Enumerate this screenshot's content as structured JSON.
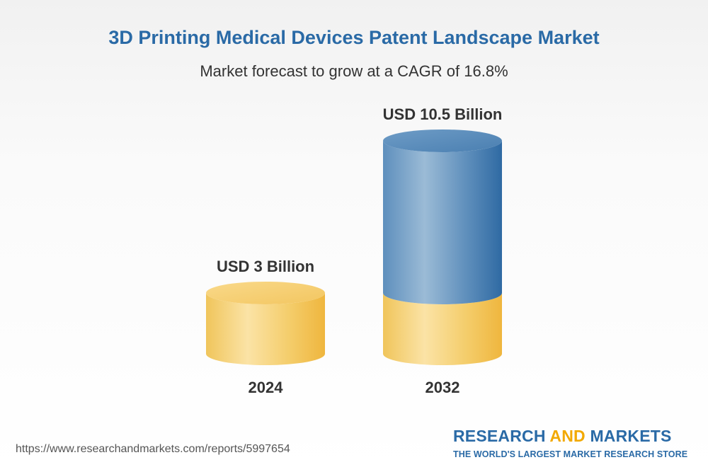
{
  "title": "3D Printing Medical Devices Patent Landscape Market",
  "subtitle": "Market forecast to grow at a CAGR of 16.8%",
  "footer": {
    "url": "https://www.researchandmarkets.com/reports/5997654",
    "brand_part1": "RESEARCH ",
    "brand_part2": "AND",
    "brand_part3": " MARKETS",
    "tagline": "THE WORLD'S LARGEST MARKET RESEARCH STORE"
  },
  "colors": {
    "base_segment": "#f2c24e",
    "growth_segment": "#4a82b5",
    "title": "#2a6aa6",
    "brand_accent": "#f2a900"
  },
  "chart_data": {
    "type": "bar",
    "title": "3D Printing Medical Devices Patent Landscape Market",
    "subtitle": "Market forecast to grow at a CAGR of 16.8%",
    "categories": [
      "2024",
      "2032"
    ],
    "values": [
      3,
      10.5
    ],
    "value_labels": [
      "USD 3 Billion",
      "USD 10.5 Billion"
    ],
    "unit": "USD Billion",
    "cagr": "16.8%",
    "style": "cylinder",
    "ylim": [
      0,
      10.5
    ]
  }
}
